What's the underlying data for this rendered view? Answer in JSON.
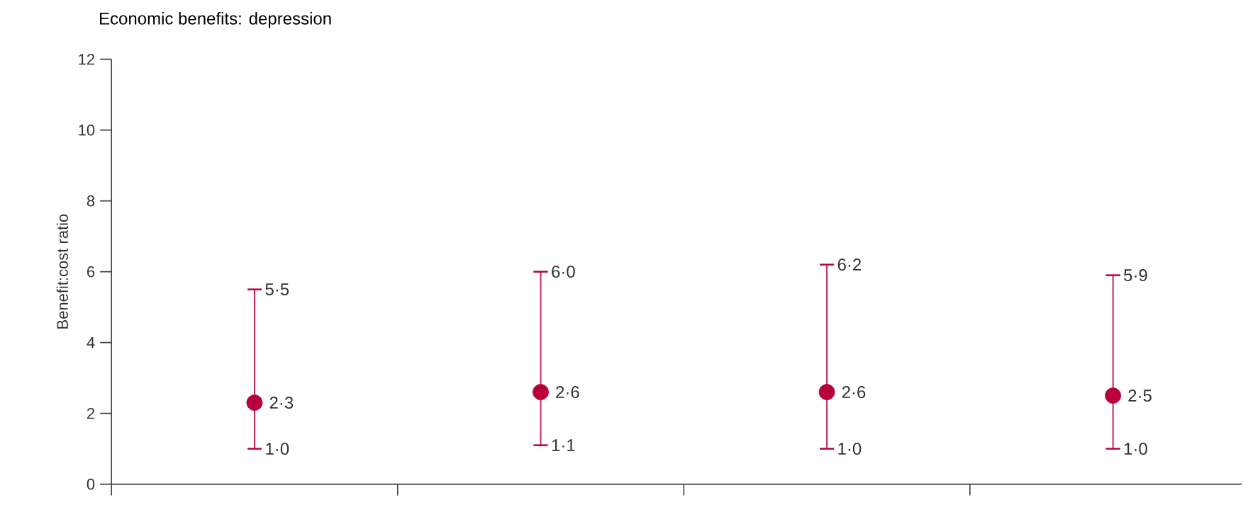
{
  "chart_data": {
    "type": "scatter",
    "title": "Economic benefits: depression",
    "ylabel": "Benefit:cost ratio",
    "categories": [
      null,
      null,
      null,
      null
    ],
    "values": [
      2.3,
      2.6,
      2.6,
      2.5
    ],
    "errors": [
      [
        1.0,
        5.5
      ],
      [
        1.1,
        6.0
      ],
      [
        1.0,
        6.2
      ],
      [
        1.0,
        5.9
      ]
    ],
    "value_labels": [
      "2·3",
      "2·6",
      "2·6",
      "2·5"
    ],
    "annotations": [
      "1·0",
      "5·5",
      "1·1",
      "6·0",
      "1·0",
      "6·2",
      "1·0",
      "5·9"
    ],
    "color": "#b8003a",
    "marker": "circle",
    "ylim": [
      0,
      12
    ],
    "yticks": [
      0,
      2,
      4,
      6,
      8,
      10,
      12
    ],
    "tick_labels": "y"
  }
}
